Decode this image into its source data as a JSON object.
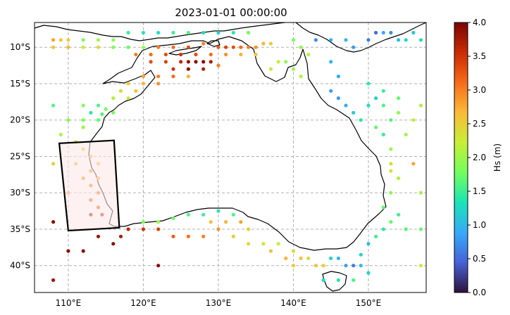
{
  "title": "2023-01-01 00:00:00",
  "lon_ticks": [
    "110°E",
    "120°E",
    "130°E",
    "140°E",
    "150°E"
  ],
  "lat_ticks": [
    "10°S",
    "15°S",
    "20°S",
    "25°S",
    "30°S",
    "35°S",
    "40°S"
  ],
  "colorbar": {
    "label": "Hs (m)",
    "min": 0.0,
    "max": 4.0,
    "ticks": [
      "0.0",
      "0.5",
      "1.0",
      "1.5",
      "2.0",
      "2.5",
      "3.0",
      "3.5",
      "4.0"
    ],
    "colormap": [
      "#30123b",
      "#4662d8",
      "#36aaf9",
      "#1ae4b6",
      "#72fe5e",
      "#c8ef34",
      "#faba39",
      "#f66b19",
      "#ca2a04",
      "#7a0403"
    ]
  },
  "chart_data": {
    "type": "scatter",
    "title": "2023-01-01 00:00:00",
    "xlim": [
      105.5,
      157.7
    ],
    "ylim": [
      -43.7,
      -6.6
    ],
    "value_label": "Hs (m)",
    "highlight_region_corners": [
      [
        108.8,
        -23.2
      ],
      [
        116.1,
        -22.8
      ],
      [
        116.8,
        -34.8
      ],
      [
        110.0,
        -35.2
      ]
    ],
    "points": [
      [
        108,
        -9,
        2.8
      ],
      [
        109,
        -9,
        2.6
      ],
      [
        110,
        -9,
        2.5
      ],
      [
        112,
        -9,
        1.8
      ],
      [
        114,
        -9,
        2.0
      ],
      [
        116,
        -9,
        1.9
      ],
      [
        118,
        -8,
        1.5
      ],
      [
        120,
        -8,
        1.4
      ],
      [
        122,
        -8,
        1.3
      ],
      [
        124,
        -8,
        1.5
      ],
      [
        126,
        -8,
        1.6
      ],
      [
        128,
        -8,
        1.3
      ],
      [
        130,
        -8,
        1.2
      ],
      [
        132,
        -8,
        1.4
      ],
      [
        134,
        -8,
        1.8
      ],
      [
        108,
        -10,
        2.6
      ],
      [
        110,
        -10,
        2.7
      ],
      [
        112,
        -10,
        2.2
      ],
      [
        114,
        -10,
        2.4
      ],
      [
        116,
        -10,
        1.8
      ],
      [
        118,
        -10,
        1.7
      ],
      [
        120,
        -10,
        2.0
      ],
      [
        122,
        -10,
        3.0
      ],
      [
        124,
        -10,
        3.1
      ],
      [
        126,
        -10,
        3.3
      ],
      [
        128,
        -9.5,
        3.0
      ],
      [
        130,
        -10,
        3.2
      ],
      [
        131,
        -10,
        3.4
      ],
      [
        132,
        -10,
        3.3
      ],
      [
        133,
        -10,
        3.1
      ],
      [
        134,
        -10,
        3.0
      ],
      [
        135,
        -10,
        2.9
      ],
      [
        136,
        -9.5,
        2.7
      ],
      [
        137,
        -9.5,
        2.5
      ],
      [
        119,
        -11,
        3.0
      ],
      [
        121,
        -11,
        3.1
      ],
      [
        123,
        -11,
        3.3
      ],
      [
        125,
        -11,
        3.5
      ],
      [
        127,
        -11,
        3.3
      ],
      [
        129,
        -11,
        3.1
      ],
      [
        131,
        -11,
        2.9
      ],
      [
        133,
        -11,
        2.7
      ],
      [
        135,
        -11,
        2.6
      ],
      [
        121,
        -12,
        3.3
      ],
      [
        123,
        -12,
        3.4
      ],
      [
        125,
        -12,
        3.6
      ],
      [
        126,
        -12,
        3.8
      ],
      [
        127,
        -12,
        3.9
      ],
      [
        128,
        -12,
        3.9
      ],
      [
        129,
        -12,
        3.7
      ],
      [
        124,
        -13,
        3.5
      ],
      [
        126,
        -13,
        3.9
      ],
      [
        128,
        -13,
        3.7
      ],
      [
        130,
        -12.5,
        3.0
      ],
      [
        120,
        -14,
        2.8
      ],
      [
        122,
        -14,
        3.0
      ],
      [
        124,
        -14,
        3.1
      ],
      [
        126,
        -14,
        2.7
      ],
      [
        118,
        -15,
        2.5
      ],
      [
        120,
        -15,
        2.7
      ],
      [
        122,
        -15,
        2.9
      ],
      [
        117,
        -16,
        2.4
      ],
      [
        119,
        -16,
        2.6
      ],
      [
        116,
        -17,
        2.1
      ],
      [
        118,
        -17,
        2.3
      ],
      [
        108,
        -18,
        1.6
      ],
      [
        112,
        -18,
        1.9
      ],
      [
        114,
        -18,
        1.6
      ],
      [
        115,
        -18.5,
        1.8
      ],
      [
        113,
        -19,
        1.4
      ],
      [
        114.5,
        -19.2,
        1.6
      ],
      [
        116,
        -19,
        1.8
      ],
      [
        112,
        -20,
        1.8
      ],
      [
        114,
        -20,
        1.7
      ],
      [
        109,
        -22,
        2.1
      ],
      [
        110,
        -20,
        1.9
      ],
      [
        111,
        -23,
        2.3
      ],
      [
        112,
        -21,
        2.0
      ],
      [
        112,
        -24,
        2.4
      ],
      [
        113,
        -25,
        2.6
      ],
      [
        111,
        -26,
        2.7
      ],
      [
        113,
        -27,
        2.8
      ],
      [
        112,
        -28,
        2.9
      ],
      [
        113,
        -29,
        3.0
      ],
      [
        114,
        -30,
        3.0
      ],
      [
        113,
        -31,
        3.1
      ],
      [
        108,
        -26,
        2.5
      ],
      [
        110,
        -30,
        2.8
      ],
      [
        114,
        -26,
        2.6
      ],
      [
        114,
        -28,
        2.7
      ],
      [
        114,
        -32,
        3.2
      ],
      [
        114.5,
        -33,
        3.6
      ],
      [
        113,
        -33,
        3.7
      ],
      [
        108,
        -34,
        3.9
      ],
      [
        110,
        -38,
        3.9
      ],
      [
        112,
        -38,
        3.9
      ],
      [
        108,
        -42,
        3.8
      ],
      [
        122,
        -40,
        3.9
      ],
      [
        114,
        -36,
        3.8
      ],
      [
        116,
        -37,
        3.9
      ],
      [
        117,
        -36,
        3.7
      ],
      [
        118,
        -35,
        3.6
      ],
      [
        120,
        -35,
        3.5
      ],
      [
        122,
        -35,
        3.4
      ],
      [
        124,
        -36,
        3.2
      ],
      [
        126,
        -36,
        3.1
      ],
      [
        128,
        -36,
        3.0
      ],
      [
        120,
        -34,
        1.8
      ],
      [
        122,
        -34,
        2.0
      ],
      [
        124,
        -33.5,
        1.7
      ],
      [
        126,
        -33,
        1.6
      ],
      [
        128,
        -33,
        1.5
      ],
      [
        130,
        -32.5,
        1.4
      ],
      [
        132,
        -33,
        1.6
      ],
      [
        129,
        -34,
        2.6
      ],
      [
        131,
        -34,
        2.7
      ],
      [
        133,
        -34,
        2.8
      ],
      [
        134,
        -35,
        2.5
      ],
      [
        130,
        -35,
        2.9
      ],
      [
        132,
        -36,
        2.5
      ],
      [
        134,
        -37,
        2.4
      ],
      [
        136,
        -37,
        2.3
      ],
      [
        138,
        -37,
        2.2
      ],
      [
        140,
        -38,
        2.4
      ],
      [
        137,
        -38,
        2.6
      ],
      [
        139,
        -39,
        2.7
      ],
      [
        141,
        -39,
        2.6
      ],
      [
        140,
        -40,
        2.5
      ],
      [
        142,
        -39,
        2.4
      ],
      [
        143,
        -40,
        2.6
      ],
      [
        144,
        -40,
        2.5
      ],
      [
        145,
        -39,
        1.2
      ],
      [
        146,
        -39,
        1.0
      ],
      [
        147,
        -40,
        0.8
      ],
      [
        148,
        -40,
        0.6
      ],
      [
        149,
        -40,
        1.0
      ],
      [
        149,
        -38.5,
        1.2
      ],
      [
        144,
        -42,
        1.3
      ],
      [
        146,
        -42,
        1.4
      ],
      [
        148,
        -42,
        1.6
      ],
      [
        150,
        -41,
        1.2
      ],
      [
        150,
        -37,
        1.0
      ],
      [
        151,
        -36,
        1.5
      ],
      [
        152,
        -35,
        1.4
      ],
      [
        153,
        -34,
        1.7
      ],
      [
        154,
        -33,
        1.5
      ],
      [
        155,
        -35,
        1.6
      ],
      [
        157,
        -35,
        1.7
      ],
      [
        152,
        -32,
        1.7
      ],
      [
        153,
        -30,
        1.9
      ],
      [
        154,
        -28,
        2.1
      ],
      [
        153,
        -27,
        2.3
      ],
      [
        153,
        -26,
        2.4
      ],
      [
        153,
        -24,
        2.0
      ],
      [
        156,
        -26,
        2.8
      ],
      [
        157,
        -30,
        2.0
      ],
      [
        157,
        -40,
        2.2
      ],
      [
        152,
        -22,
        1.5
      ],
      [
        151,
        -21,
        1.7
      ],
      [
        149,
        -20,
        1.4
      ],
      [
        148,
        -19,
        1.1
      ],
      [
        147,
        -18,
        0.9
      ],
      [
        146,
        -17,
        0.8
      ],
      [
        145,
        -16,
        0.8
      ],
      [
        146,
        -14,
        0.9
      ],
      [
        145,
        -12,
        1.0
      ],
      [
        150,
        -18,
        1.3
      ],
      [
        152,
        -18,
        1.6
      ],
      [
        154,
        -19,
        1.9
      ],
      [
        156,
        -20,
        2.2
      ],
      [
        157,
        -18,
        2.1
      ],
      [
        150,
        -15,
        1.4
      ],
      [
        152,
        -16,
        1.5
      ],
      [
        154,
        -17,
        1.7
      ],
      [
        151,
        -17,
        1.2
      ],
      [
        153,
        -20,
        1.6
      ],
      [
        155,
        -22,
        2.0
      ],
      [
        143,
        -9,
        0.7
      ],
      [
        145,
        -9,
        0.9
      ],
      [
        147,
        -9,
        1.0
      ],
      [
        148,
        -10,
        0.8
      ],
      [
        150,
        -9,
        0.6
      ],
      [
        151,
        -8,
        0.5
      ],
      [
        152,
        -8,
        0.9
      ],
      [
        153,
        -8,
        0.7
      ],
      [
        154,
        -9,
        1.0
      ],
      [
        155,
        -9,
        1.2
      ],
      [
        156,
        -8,
        1.1
      ],
      [
        157,
        -9,
        1.3
      ],
      [
        140,
        -9,
        1.8
      ],
      [
        141,
        -10,
        1.9
      ],
      [
        142,
        -11,
        2.1
      ],
      [
        139,
        -12,
        1.9
      ],
      [
        140,
        -13,
        2.0
      ],
      [
        141,
        -14,
        2.1
      ],
      [
        138,
        -12,
        2.2
      ],
      [
        137,
        -13,
        2.3
      ]
    ]
  }
}
